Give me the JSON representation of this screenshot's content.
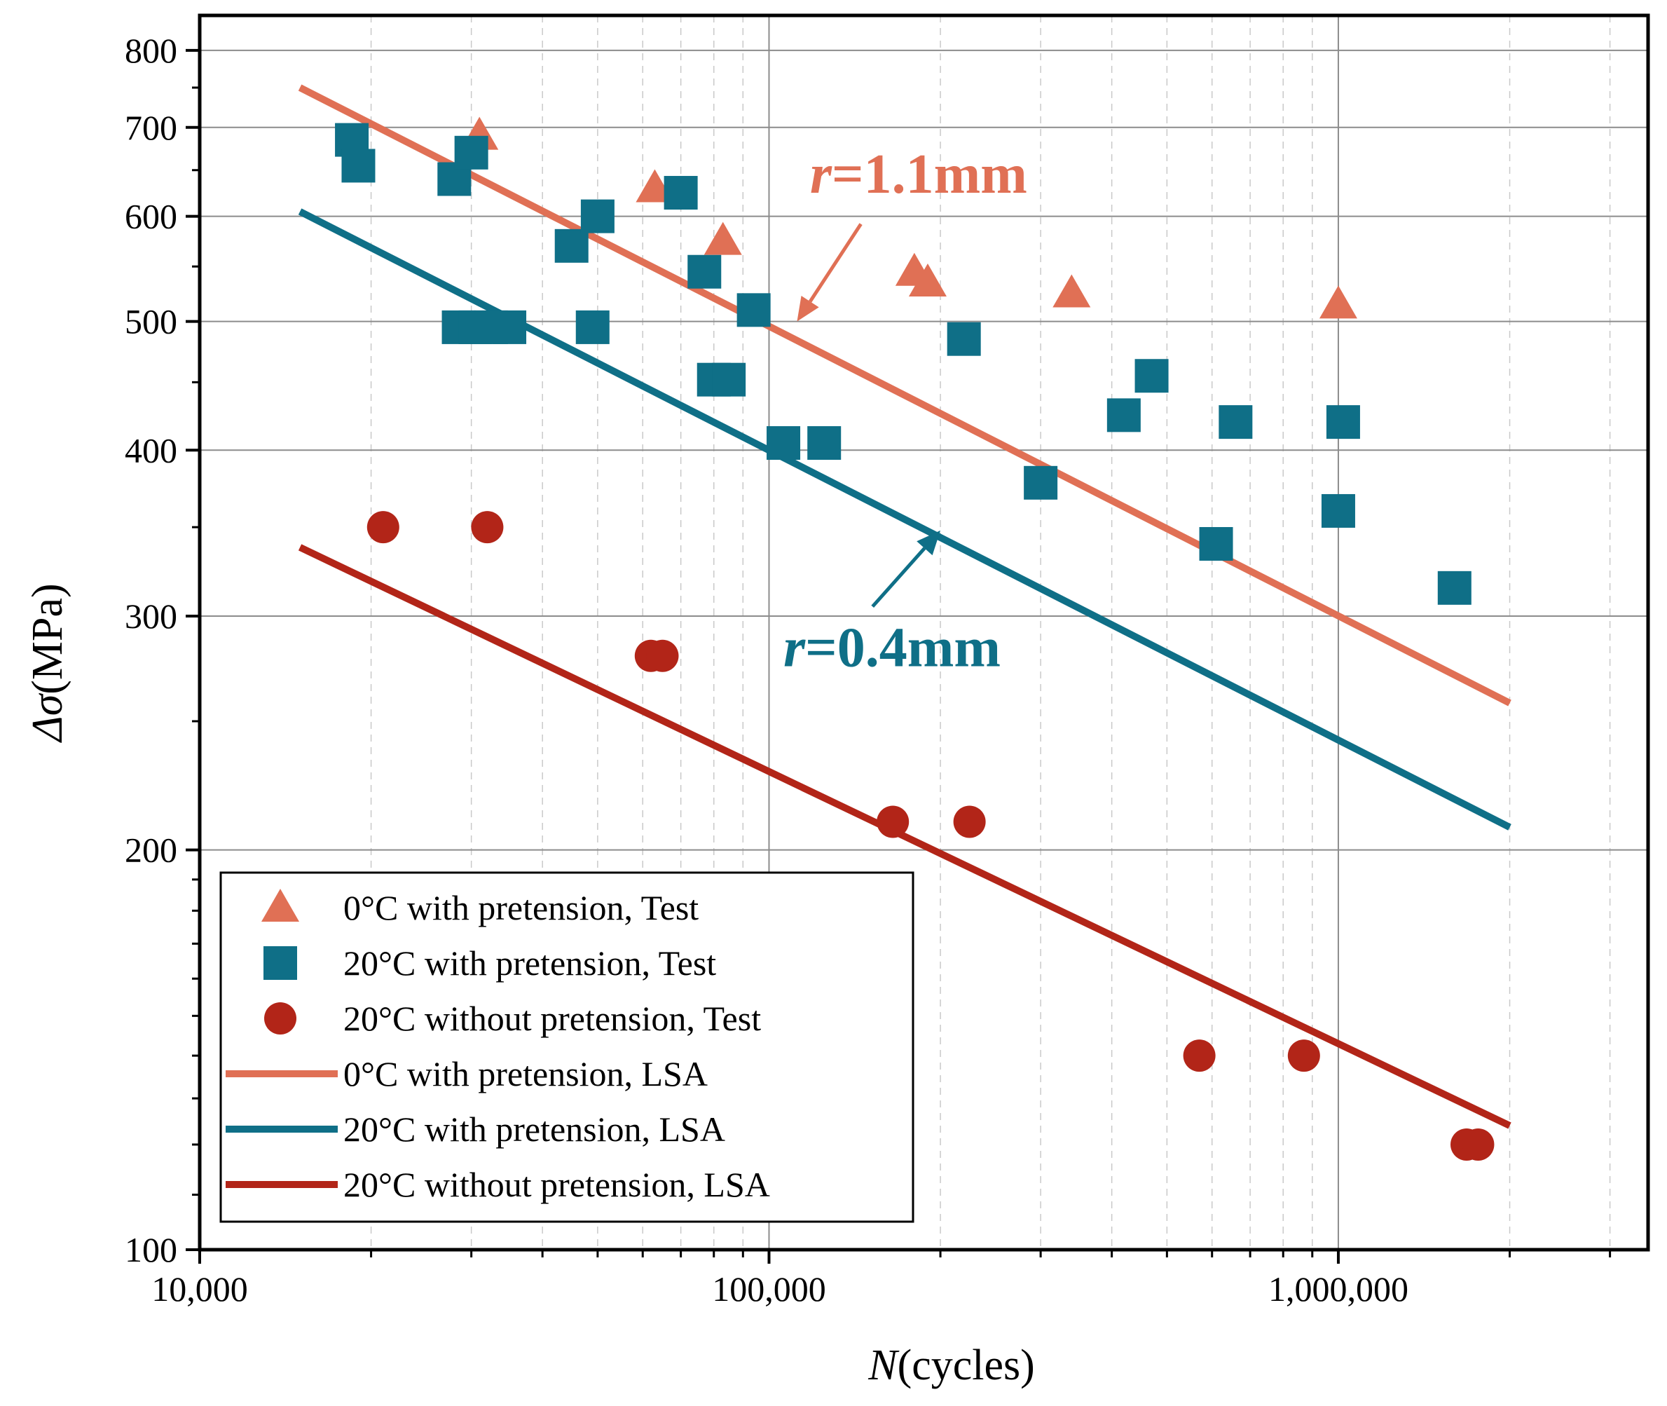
{
  "chart_data": {
    "type": "scatter",
    "x_scale": "log",
    "y_scale": "log",
    "xlim": [
      10000,
      3500000
    ],
    "ylim": [
      100,
      850
    ],
    "x_ticks": [
      10000,
      100000,
      1000000
    ],
    "x_tick_labels": [
      "10,000",
      "100,000",
      "1,000,000"
    ],
    "y_ticks": [
      100,
      200,
      300,
      400,
      500,
      600,
      700,
      800
    ],
    "y_tick_labels": [
      "100",
      "200",
      "300",
      "400",
      "500",
      "600",
      "700",
      "800"
    ],
    "xlabel": {
      "italic": "N",
      "rest": "(cycles)"
    },
    "ylabel": {
      "italic": "Δσ",
      "rest": "(MPa)"
    },
    "grid": true,
    "legend_position": "bottom-left",
    "colors": {
      "orange": "#e07055",
      "teal": "#0f6f87",
      "red": "#b22518"
    },
    "series": [
      {
        "name": "0°C with pretension, Test",
        "kind": "scatter",
        "marker": "triangle",
        "color": "#e07055",
        "points": [
          [
            31000,
            690
          ],
          [
            63000,
            630
          ],
          [
            83000,
            575
          ],
          [
            180000,
            545
          ],
          [
            190000,
            535
          ],
          [
            340000,
            525
          ],
          [
            1000000,
            515
          ]
        ]
      },
      {
        "name": "20°C with pretension, Test",
        "kind": "scatter",
        "marker": "square",
        "color": "#0f6f87",
        "points": [
          [
            18500,
            685
          ],
          [
            19000,
            655
          ],
          [
            28000,
            640
          ],
          [
            30000,
            670
          ],
          [
            28500,
            495
          ],
          [
            30500,
            495
          ],
          [
            32500,
            495
          ],
          [
            35000,
            495
          ],
          [
            45000,
            570
          ],
          [
            50000,
            600
          ],
          [
            49000,
            495
          ],
          [
            70000,
            625
          ],
          [
            77000,
            545
          ],
          [
            80000,
            452
          ],
          [
            85000,
            452
          ],
          [
            94000,
            510
          ],
          [
            106000,
            405
          ],
          [
            125000,
            405
          ],
          [
            220000,
            485
          ],
          [
            300000,
            378
          ],
          [
            420000,
            425
          ],
          [
            470000,
            455
          ],
          [
            610000,
            340
          ],
          [
            660000,
            420
          ],
          [
            1000000,
            360
          ],
          [
            1020000,
            420
          ],
          [
            1600000,
            315
          ]
        ]
      },
      {
        "name": "20°C without pretension, Test",
        "kind": "scatter",
        "marker": "circle",
        "color": "#b22518",
        "points": [
          [
            21000,
            350
          ],
          [
            32000,
            350
          ],
          [
            62000,
            280
          ],
          [
            65000,
            280
          ],
          [
            165000,
            210
          ],
          [
            225000,
            210
          ],
          [
            570000,
            140
          ],
          [
            870000,
            140
          ],
          [
            1680000,
            120
          ],
          [
            1760000,
            120
          ]
        ]
      },
      {
        "name": "0°C with pretension, LSA",
        "kind": "line",
        "color": "#e07055",
        "points": [
          [
            15000,
            750
          ],
          [
            2000000,
            258
          ]
        ]
      },
      {
        "name": "20°C with pretension, LSA",
        "kind": "line",
        "color": "#0f6f87",
        "points": [
          [
            15000,
            605
          ],
          [
            2000000,
            208
          ]
        ]
      },
      {
        "name": "20°C without pretension, LSA",
        "kind": "line",
        "color": "#b22518",
        "points": [
          [
            15000,
            338
          ],
          [
            2000000,
            124
          ]
        ]
      }
    ],
    "annotations": [
      {
        "label_italic": "r",
        "label_rest": "=1.1mm",
        "color": "#e07055",
        "text_at": [
          118000,
          625
        ],
        "arrow_from": [
          145000,
          592
        ],
        "arrow_to": [
          112000,
          500
        ]
      },
      {
        "label_italic": "r",
        "label_rest": "=0.4mm",
        "color": "#0f6f87",
        "text_at": [
          106000,
          275
        ],
        "arrow_from": [
          152000,
          305
        ],
        "arrow_to": [
          200000,
          348
        ]
      }
    ]
  }
}
